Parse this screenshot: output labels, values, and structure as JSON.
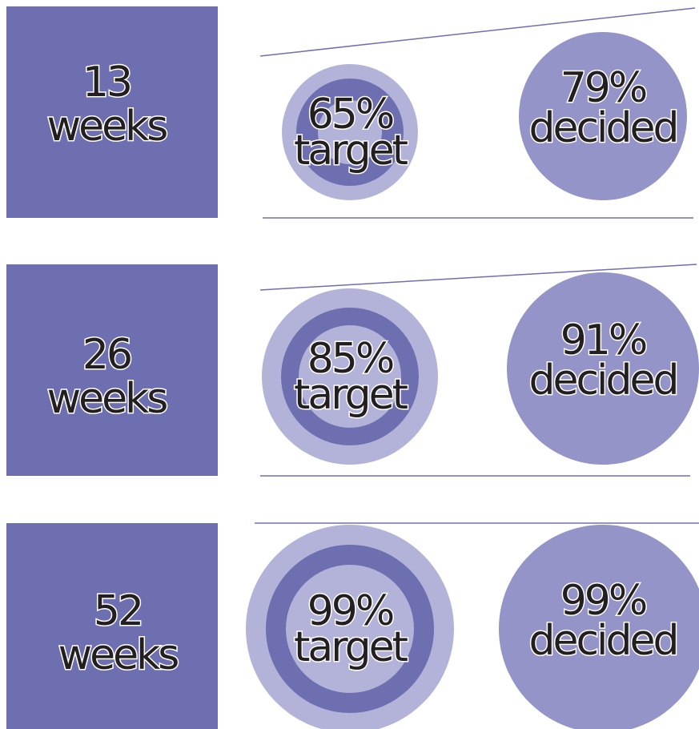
{
  "rows": [
    {
      "period": {
        "number": "13",
        "unit": "weeks"
      },
      "target": {
        "percent": "65%",
        "label": "target"
      },
      "decided": {
        "percent": "79%",
        "label": "decided"
      }
    },
    {
      "period": {
        "number": "26",
        "unit": "weeks"
      },
      "target": {
        "percent": "85%",
        "label": "target"
      },
      "decided": {
        "percent": "91%",
        "label": "decided"
      }
    },
    {
      "period": {
        "number": "52",
        "unit": "weeks"
      },
      "target": {
        "percent": "99%",
        "label": "target"
      },
      "decided": {
        "percent": "99%",
        "label": "decided"
      }
    }
  ]
}
